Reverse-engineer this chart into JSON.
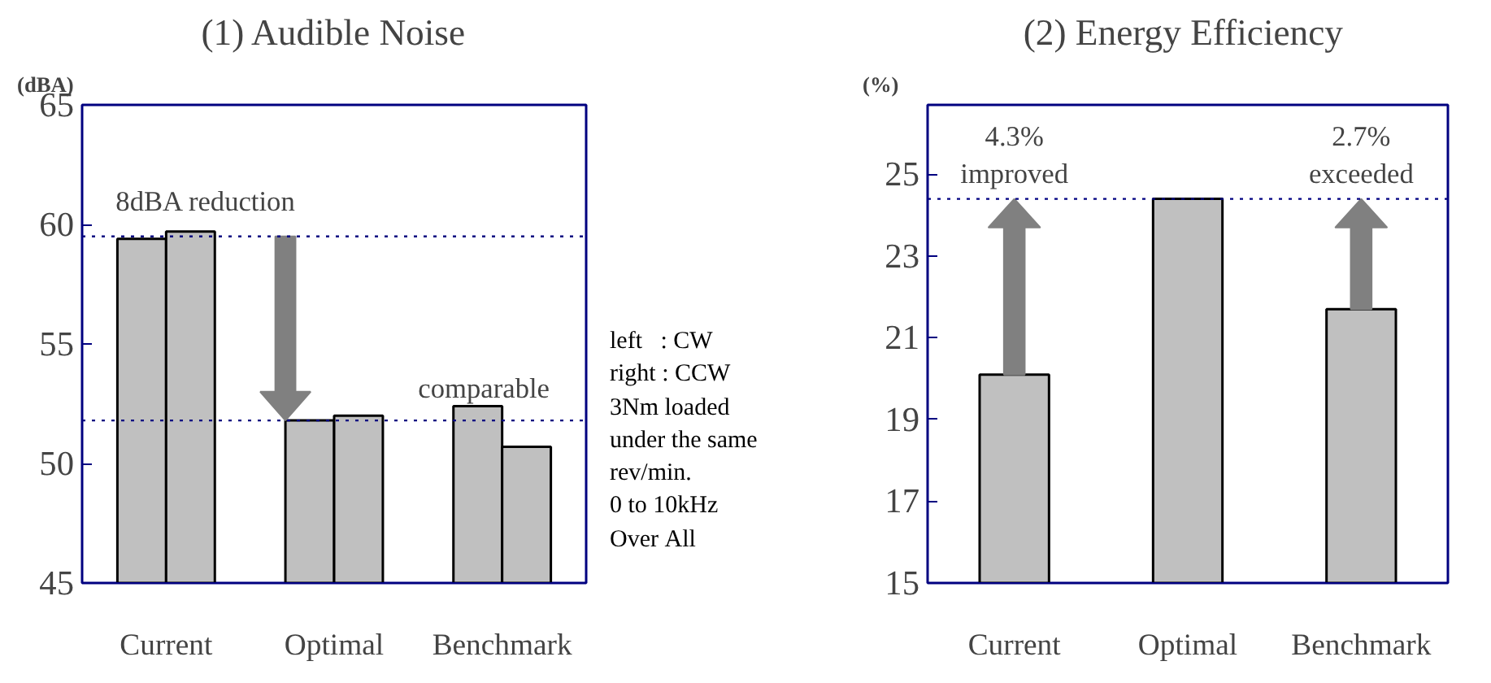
{
  "chart_data": [
    {
      "type": "bar",
      "title": "(1) Audible Noise",
      "ylabel": "(dBA)",
      "categories": [
        "Current",
        "Optimal",
        "Benchmark"
      ],
      "series": [
        {
          "color": "#c0c0c0",
          "values": [
            59.4,
            51.8,
            52.4
          ]
        },
        {
          "color": "#c0c0c0",
          "values": [
            59.7,
            52.0,
            50.7
          ]
        }
      ],
      "ylim": [
        45,
        65
      ],
      "yticks": [
        45,
        50,
        55,
        60,
        65
      ],
      "grid": false,
      "ref_lines": [
        {
          "axis": "y",
          "value": 59.5,
          "color": "#000080",
          "line_style": "dotted"
        },
        {
          "axis": "y",
          "value": 51.8,
          "color": "#000080",
          "line_style": "dotted"
        }
      ],
      "annotations": [
        {
          "text": "8dBA reduction",
          "x": "Current",
          "y": 59.5
        },
        {
          "text": "comparable",
          "x": "Benchmark",
          "y": 51.8
        },
        "left   : CW\nright : CCW\n3Nm loaded\nunder the same\nrev/min.\n0 to 10kHz\nOver All"
      ]
    },
    {
      "type": "bar",
      "title": "(2)  Energy Efficiency",
      "ylabel": "(%)",
      "categories": [
        "Current",
        "Optimal",
        "Benchmark"
      ],
      "series": [
        {
          "color": "#c0c0c0",
          "values": [
            20.1,
            24.4,
            21.7
          ]
        }
      ],
      "ylim": [
        15,
        26.7
      ],
      "yticks": [
        15,
        17,
        19,
        21,
        23,
        25
      ],
      "grid": false,
      "ref_lines": [
        {
          "axis": "y",
          "value": 24.4,
          "color": "#000080",
          "line_style": "dotted"
        }
      ],
      "annotations": [
        {
          "text": "4.3%\nimproved",
          "x": "Current",
          "y": 24.4
        },
        {
          "text": "2.7%\nexceeded",
          "x": "Benchmark",
          "y": 24.4
        }
      ]
    }
  ]
}
